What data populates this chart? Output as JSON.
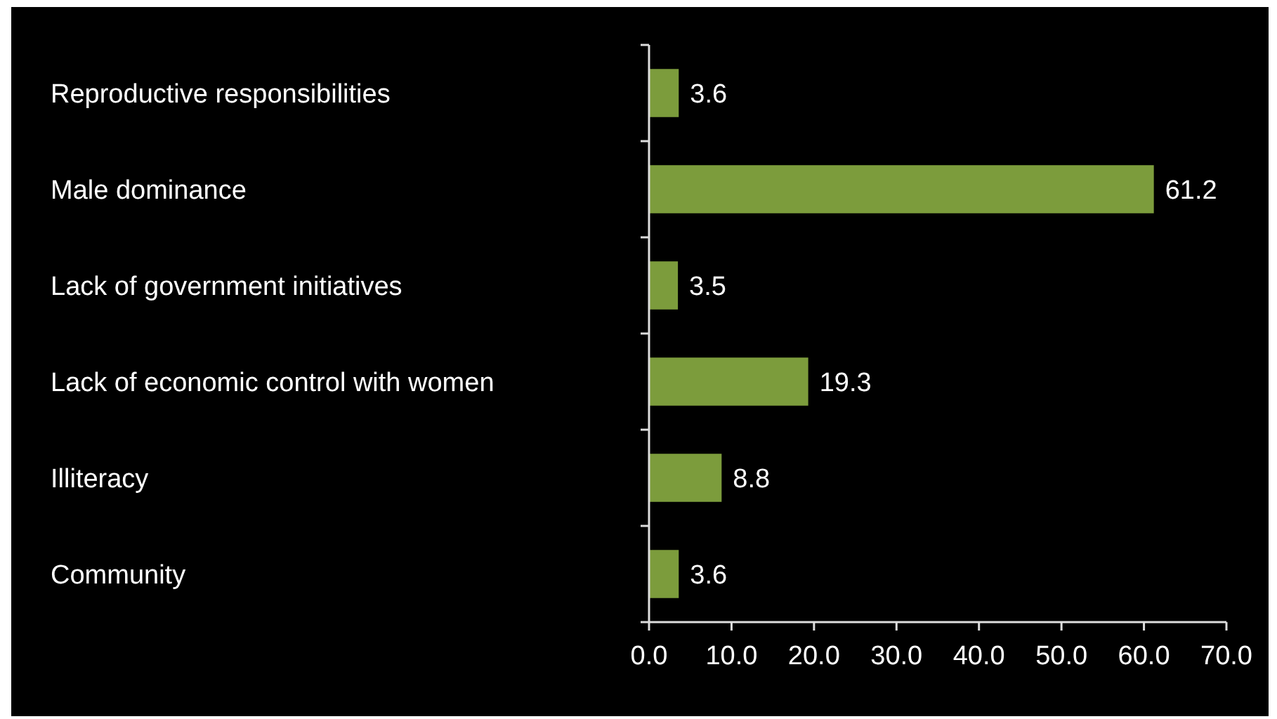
{
  "chart_data": {
    "type": "bar",
    "orientation": "horizontal",
    "categories": [
      "Reproductive responsibilities",
      "Male dominance",
      "Lack of government initiatives",
      "Lack of economic control with women",
      "Illiteracy",
      "Community"
    ],
    "values": [
      3.6,
      61.2,
      3.5,
      19.3,
      8.8,
      3.6
    ],
    "color": "#7c9c3c",
    "xlim": [
      0,
      70
    ],
    "xticks": [
      {
        "value": 0,
        "label": "0.0"
      },
      {
        "value": 10,
        "label": "10.0"
      },
      {
        "value": 20,
        "label": "20.0"
      },
      {
        "value": 30,
        "label": "30.0"
      },
      {
        "value": 40,
        "label": "40.0"
      },
      {
        "value": 50,
        "label": "50.0"
      },
      {
        "value": 60,
        "label": "60.0"
      },
      {
        "value": 70,
        "label": "70.0"
      }
    ],
    "data_labels": true,
    "grid": false
  }
}
